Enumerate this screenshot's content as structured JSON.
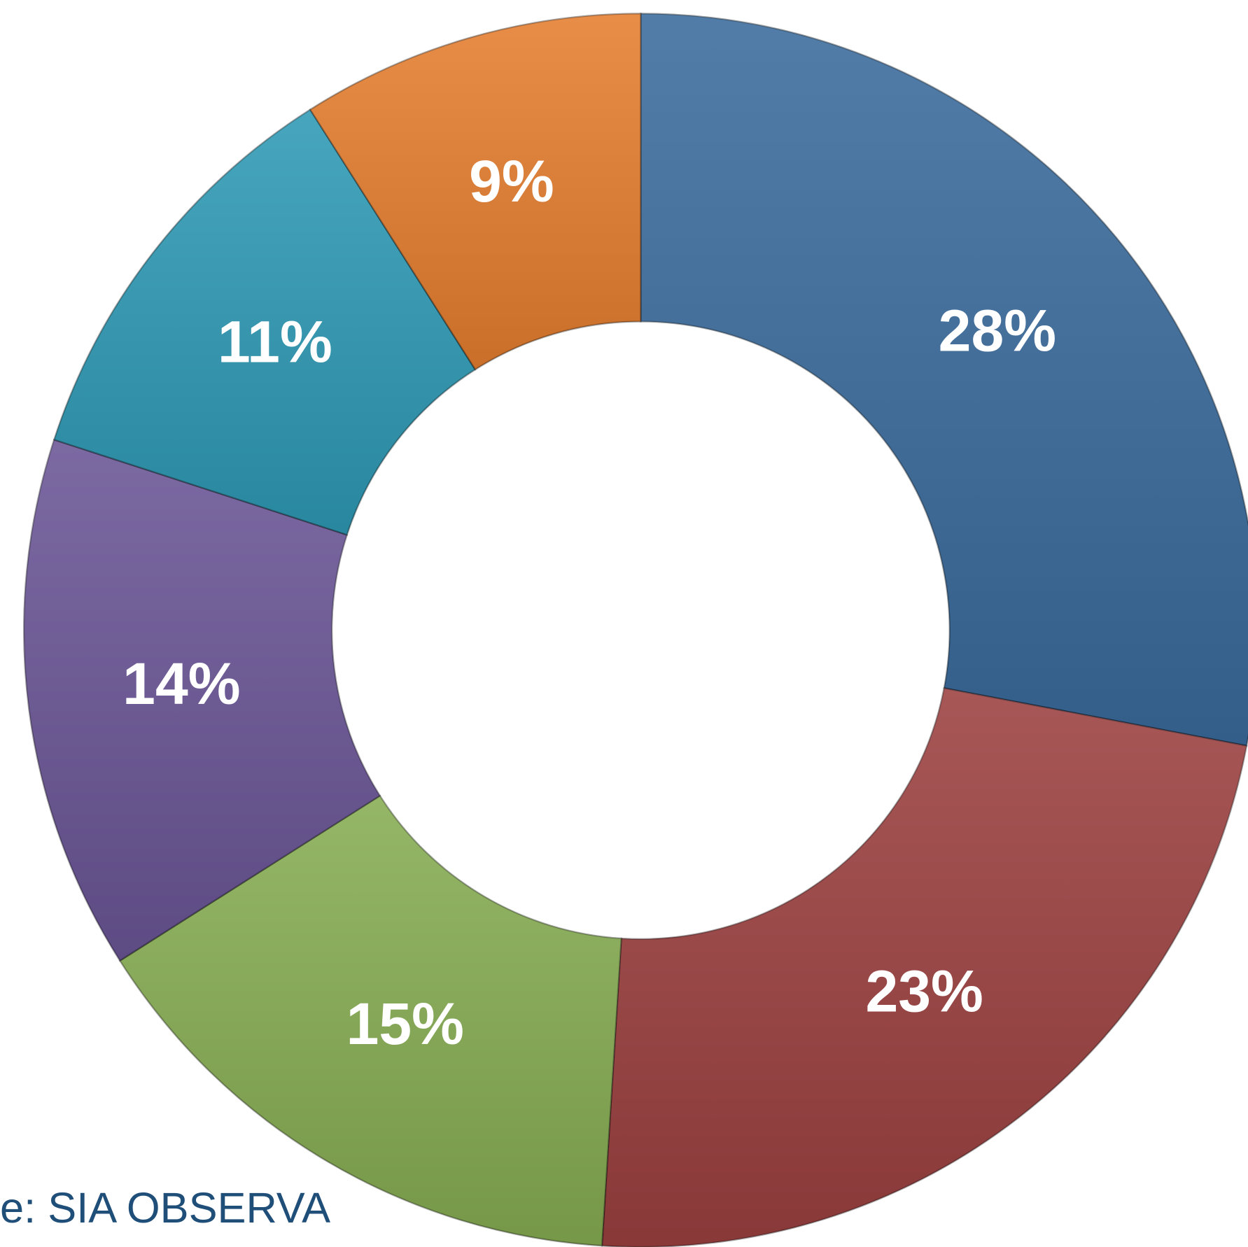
{
  "chart_data": {
    "type": "donut",
    "values": [
      28,
      23,
      15,
      14,
      11,
      9
    ],
    "value_labels": [
      "28%",
      "23%",
      "15%",
      "14%",
      "11%",
      "9%"
    ],
    "colors": [
      "#3a6b9c",
      "#9c4040",
      "#86ac52",
      "#6a5596",
      "#2e9ab5",
      "#e57e2f"
    ],
    "source": "e: SIA OBSERVA"
  }
}
